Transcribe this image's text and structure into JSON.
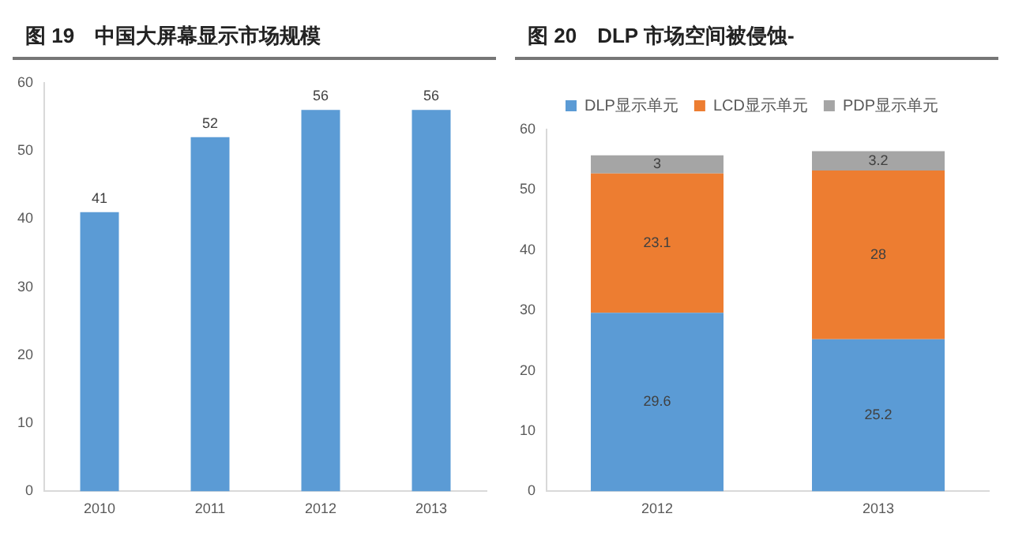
{
  "chart_data": [
    {
      "type": "bar",
      "title": "图 19　中国大屏幕显示市场规模",
      "categories": [
        "2010",
        "2011",
        "2012",
        "2013"
      ],
      "values": [
        41,
        52,
        56,
        56
      ],
      "color": "#5b9bd5",
      "ylim": [
        0,
        60
      ],
      "yticks": [
        0,
        10,
        20,
        30,
        40,
        50,
        60
      ],
      "grid": false,
      "legend": false,
      "data_labels": true
    },
    {
      "type": "bar",
      "title": "图 20　DLP 市场空间被侵蚀-",
      "categories": [
        "2012",
        "2013"
      ],
      "stacked": true,
      "series": [
        {
          "name": "DLP显示单元",
          "color": "#5b9bd5",
          "values": [
            29.6,
            25.2
          ]
        },
        {
          "name": "LCD显示单元",
          "color": "#ed7d31",
          "values": [
            23.1,
            28
          ]
        },
        {
          "name": "PDP显示单元",
          "color": "#a5a5a5",
          "values": [
            3,
            3.2
          ]
        }
      ],
      "ylim": [
        0,
        60
      ],
      "yticks": [
        0,
        10,
        20,
        30,
        40,
        50,
        60
      ],
      "grid": false,
      "legend": "top",
      "data_labels": true
    }
  ]
}
